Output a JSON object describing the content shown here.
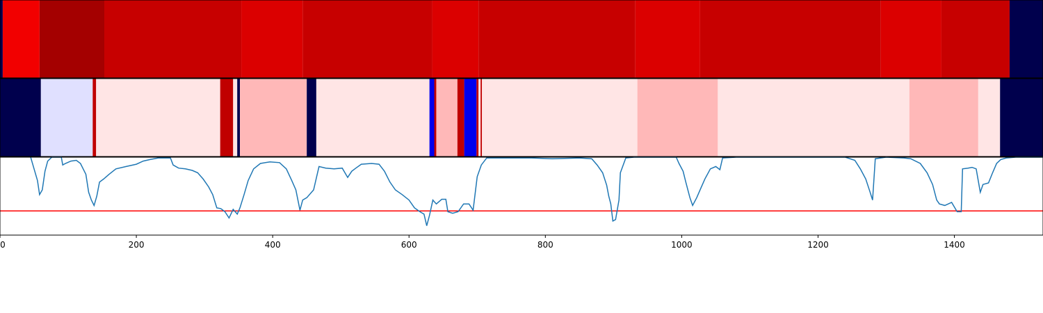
{
  "chart_data": [
    {
      "type": "heatmap",
      "colormap": "seismic",
      "xlim": [
        0,
        1530
      ],
      "segments": [
        {
          "x0": 0,
          "x1": 4,
          "value": -1.0
        },
        {
          "x0": 4,
          "x1": 58,
          "value": 0.55
        },
        {
          "x0": 58,
          "x1": 153,
          "value": 0.86
        },
        {
          "x0": 153,
          "x1": 354,
          "value": 0.72
        },
        {
          "x0": 354,
          "x1": 444,
          "value": 0.64
        },
        {
          "x0": 444,
          "x1": 634,
          "value": 0.72
        },
        {
          "x0": 634,
          "x1": 702,
          "value": 0.64
        },
        {
          "x0": 702,
          "x1": 932,
          "value": 0.72
        },
        {
          "x0": 932,
          "x1": 1027,
          "value": 0.64
        },
        {
          "x0": 1027,
          "x1": 1292,
          "value": 0.72
        },
        {
          "x0": 1292,
          "x1": 1381,
          "value": 0.64
        },
        {
          "x0": 1381,
          "x1": 1481,
          "value": 0.72
        },
        {
          "x0": 1481,
          "x1": 1530,
          "value": -1.0
        }
      ]
    },
    {
      "type": "heatmap",
      "colormap": "seismic",
      "xlim": [
        0,
        1530
      ],
      "segments": [
        {
          "x0": 0,
          "x1": 60,
          "value": -1.0
        },
        {
          "x0": 60,
          "x1": 136,
          "value": -0.06
        },
        {
          "x0": 136,
          "x1": 141,
          "value": 0.75
        },
        {
          "x0": 141,
          "x1": 323,
          "value": 0.05
        },
        {
          "x0": 323,
          "x1": 342,
          "value": 0.75
        },
        {
          "x0": 342,
          "x1": 348,
          "value": 0.05
        },
        {
          "x0": 348,
          "x1": 352,
          "value": -1.0
        },
        {
          "x0": 352,
          "x1": 450,
          "value": 0.14
        },
        {
          "x0": 450,
          "x1": 464,
          "value": -1.0
        },
        {
          "x0": 464,
          "x1": 630,
          "value": 0.05
        },
        {
          "x0": 630,
          "x1": 637,
          "value": -0.55
        },
        {
          "x0": 637,
          "x1": 640,
          "value": 0.75
        },
        {
          "x0": 640,
          "x1": 671,
          "value": 0.14
        },
        {
          "x0": 671,
          "x1": 681,
          "value": 0.75
        },
        {
          "x0": 681,
          "x1": 699,
          "value": -0.55
        },
        {
          "x0": 699,
          "x1": 702,
          "value": 0.75
        },
        {
          "x0": 702,
          "x1": 705,
          "value": 0.05
        },
        {
          "x0": 705,
          "x1": 707,
          "value": 0.75
        },
        {
          "x0": 707,
          "x1": 935,
          "value": 0.05
        },
        {
          "x0": 935,
          "x1": 1053,
          "value": 0.14
        },
        {
          "x0": 1053,
          "x1": 1334,
          "value": 0.05
        },
        {
          "x0": 1334,
          "x1": 1435,
          "value": 0.14
        },
        {
          "x0": 1435,
          "x1": 1467,
          "value": 0.05
        },
        {
          "x0": 1467,
          "x1": 1530,
          "value": -1.0
        }
      ]
    },
    {
      "type": "line",
      "color": "#1f77b4",
      "xlim": [
        0,
        1530
      ],
      "ylim": [
        0.0,
        1.0
      ],
      "threshold": {
        "y": 0.31,
        "color": "#ff0000"
      },
      "xticks": [
        0,
        200,
        400,
        600,
        800,
        1000,
        1200,
        1400
      ],
      "xtick_labels": [
        "0",
        "200",
        "400",
        "600",
        "800",
        "1000",
        "1200",
        "1400"
      ],
      "points": [
        [
          45,
          1.0
        ],
        [
          50,
          0.85
        ],
        [
          55,
          0.7
        ],
        [
          58,
          0.52
        ],
        [
          62,
          0.58
        ],
        [
          66,
          0.82
        ],
        [
          70,
          0.95
        ],
        [
          76,
          1.0
        ],
        [
          90,
          1.0
        ],
        [
          92,
          0.9
        ],
        [
          96,
          0.92
        ],
        [
          104,
          0.95
        ],
        [
          112,
          0.96
        ],
        [
          118,
          0.92
        ],
        [
          122,
          0.85
        ],
        [
          126,
          0.78
        ],
        [
          130,
          0.55
        ],
        [
          134,
          0.45
        ],
        [
          138,
          0.38
        ],
        [
          142,
          0.5
        ],
        [
          146,
          0.68
        ],
        [
          152,
          0.72
        ],
        [
          160,
          0.78
        ],
        [
          170,
          0.85
        ],
        [
          185,
          0.88
        ],
        [
          200,
          0.91
        ],
        [
          210,
          0.95
        ],
        [
          220,
          0.97
        ],
        [
          232,
          0.99
        ],
        [
          250,
          0.99
        ],
        [
          254,
          0.9
        ],
        [
          262,
          0.86
        ],
        [
          272,
          0.85
        ],
        [
          282,
          0.83
        ],
        [
          290,
          0.8
        ],
        [
          298,
          0.72
        ],
        [
          306,
          0.62
        ],
        [
          312,
          0.52
        ],
        [
          318,
          0.35
        ],
        [
          324,
          0.34
        ],
        [
          330,
          0.3
        ],
        [
          336,
          0.22
        ],
        [
          342,
          0.33
        ],
        [
          348,
          0.27
        ],
        [
          352,
          0.35
        ],
        [
          358,
          0.52
        ],
        [
          364,
          0.7
        ],
        [
          372,
          0.85
        ],
        [
          382,
          0.92
        ],
        [
          396,
          0.94
        ],
        [
          410,
          0.93
        ],
        [
          420,
          0.85
        ],
        [
          428,
          0.7
        ],
        [
          434,
          0.58
        ],
        [
          440,
          0.32
        ],
        [
          444,
          0.45
        ],
        [
          450,
          0.48
        ],
        [
          460,
          0.58
        ],
        [
          468,
          0.88
        ],
        [
          478,
          0.86
        ],
        [
          490,
          0.85
        ],
        [
          502,
          0.86
        ],
        [
          510,
          0.74
        ],
        [
          516,
          0.82
        ],
        [
          522,
          0.86
        ],
        [
          530,
          0.91
        ],
        [
          545,
          0.92
        ],
        [
          556,
          0.91
        ],
        [
          564,
          0.82
        ],
        [
          572,
          0.68
        ],
        [
          580,
          0.58
        ],
        [
          590,
          0.52
        ],
        [
          600,
          0.45
        ],
        [
          608,
          0.35
        ],
        [
          616,
          0.3
        ],
        [
          622,
          0.27
        ],
        [
          626,
          0.12
        ],
        [
          630,
          0.25
        ],
        [
          635,
          0.45
        ],
        [
          640,
          0.4
        ],
        [
          648,
          0.46
        ],
        [
          654,
          0.46
        ],
        [
          657,
          0.3
        ],
        [
          664,
          0.28
        ],
        [
          672,
          0.3
        ],
        [
          680,
          0.4
        ],
        [
          688,
          0.4
        ],
        [
          694,
          0.32
        ],
        [
          700,
          0.75
        ],
        [
          706,
          0.9
        ],
        [
          714,
          0.99
        ],
        [
          740,
          0.99
        ],
        [
          780,
          0.99
        ],
        [
          810,
          0.98
        ],
        [
          850,
          0.99
        ],
        [
          868,
          0.98
        ],
        [
          876,
          0.9
        ],
        [
          884,
          0.8
        ],
        [
          890,
          0.64
        ],
        [
          893,
          0.5
        ],
        [
          896,
          0.4
        ],
        [
          899,
          0.18
        ],
        [
          903,
          0.2
        ],
        [
          908,
          0.45
        ],
        [
          910,
          0.8
        ],
        [
          918,
          0.99
        ],
        [
          930,
          1.0
        ],
        [
          965,
          1.0
        ],
        [
          992,
          1.0
        ],
        [
          996,
          0.92
        ],
        [
          1002,
          0.82
        ],
        [
          1006,
          0.68
        ],
        [
          1012,
          0.48
        ],
        [
          1016,
          0.38
        ],
        [
          1022,
          0.48
        ],
        [
          1028,
          0.6
        ],
        [
          1034,
          0.72
        ],
        [
          1042,
          0.85
        ],
        [
          1050,
          0.88
        ],
        [
          1056,
          0.84
        ],
        [
          1060,
          0.99
        ],
        [
          1080,
          1.0
        ],
        [
          1150,
          1.0
        ],
        [
          1240,
          1.0
        ],
        [
          1254,
          0.96
        ],
        [
          1262,
          0.85
        ],
        [
          1270,
          0.72
        ],
        [
          1276,
          0.56
        ],
        [
          1280,
          0.45
        ],
        [
          1284,
          0.98
        ],
        [
          1300,
          1.0
        ],
        [
          1326,
          0.99
        ],
        [
          1336,
          0.98
        ],
        [
          1350,
          0.92
        ],
        [
          1360,
          0.8
        ],
        [
          1368,
          0.65
        ],
        [
          1374,
          0.45
        ],
        [
          1378,
          0.4
        ],
        [
          1386,
          0.38
        ],
        [
          1396,
          0.42
        ],
        [
          1404,
          0.3
        ],
        [
          1410,
          0.3
        ],
        [
          1412,
          0.85
        ],
        [
          1420,
          0.86
        ],
        [
          1426,
          0.87
        ],
        [
          1432,
          0.85
        ],
        [
          1438,
          0.55
        ],
        [
          1442,
          0.65
        ],
        [
          1450,
          0.67
        ],
        [
          1456,
          0.8
        ],
        [
          1462,
          0.92
        ],
        [
          1468,
          0.97
        ],
        [
          1476,
          0.99
        ],
        [
          1490,
          1.0
        ],
        [
          1530,
          1.0
        ]
      ]
    }
  ]
}
